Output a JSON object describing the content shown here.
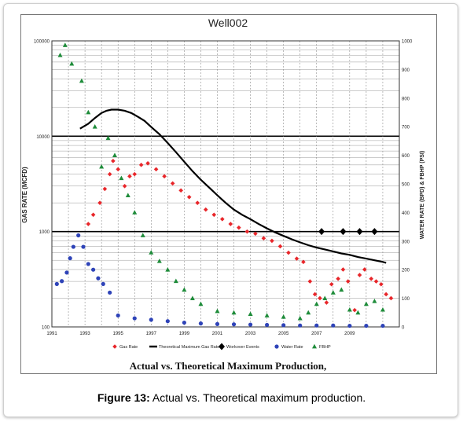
{
  "caption": {
    "label": "Figure 13:",
    "text": " Actual vs. Theoretical maximum production."
  },
  "chart_data": {
    "type": "scatter",
    "title": "Well002",
    "subtitle": "Actual vs. Theoretical Maximum Production,",
    "ylabel_left": "GAS RATE (MCFD)",
    "ylabel_right": "WATER RATE (BPD) & FBHP (PSI)",
    "y_left_scale": "log",
    "y_left_lim": [
      100,
      100000
    ],
    "y_left_ticks": [
      "100000",
      "10000",
      "1000",
      "100"
    ],
    "y_right_lim": [
      0,
      1000
    ],
    "y_right_ticks": [
      "1000",
      "900",
      "800",
      "700",
      "600",
      "500",
      "400",
      "300",
      "200",
      "100",
      "0"
    ],
    "xlim": [
      1991,
      2012
    ],
    "x_ticks": [
      "1991",
      "1993",
      "1995",
      "1997",
      "1999",
      "2001",
      "2003",
      "2005",
      "2007",
      "2009"
    ],
    "grid": true,
    "legend_position": "bottom",
    "series": [
      {
        "name": "Gas Rate",
        "axis": "left",
        "marker": "diamond",
        "color": "#e8262a",
        "x": [
          1993.2,
          1993.5,
          1993.9,
          1994.2,
          1994.5,
          1994.7,
          1995.0,
          1995.4,
          1995.7,
          1996.0,
          1996.4,
          1996.8,
          1997.3,
          1997.8,
          1998.3,
          1998.8,
          1999.3,
          1999.8,
          2000.3,
          2000.8,
          2001.3,
          2001.8,
          2002.3,
          2002.8,
          2003.3,
          2003.8,
          2004.3,
          2004.8,
          2005.3,
          2005.8,
          2006.2,
          2006.6,
          2006.9,
          2007.2,
          2007.6,
          2007.9,
          2008.3,
          2008.6,
          2008.9,
          2009.3,
          2009.6,
          2009.9,
          2010.3,
          2010.6,
          2010.9,
          2011.2,
          2011.5
        ],
        "y": [
          1200,
          1500,
          2000,
          2800,
          4000,
          5500,
          4500,
          3000,
          3800,
          4000,
          5000,
          5200,
          4500,
          3800,
          3200,
          2700,
          2300,
          2000,
          1700,
          1500,
          1350,
          1200,
          1100,
          1000,
          950,
          850,
          800,
          700,
          600,
          520,
          480,
          300,
          220,
          200,
          180,
          280,
          320,
          400,
          300,
          150,
          350,
          400,
          320,
          300,
          280,
          220,
          200
        ]
      },
      {
        "name": "Theoretical Maximum Gas Rate",
        "axis": "left",
        "marker": "line",
        "color": "#000000",
        "x": [
          1992.7,
          1993.2,
          1993.6,
          1994.0,
          1994.3,
          1994.6,
          1995.0,
          1995.4,
          1995.8,
          1996.2,
          1996.6,
          1997.0,
          1997.5,
          1998.0,
          1998.5,
          1999.0,
          1999.5,
          2000.0,
          2000.5,
          2001.0,
          2001.5,
          2002.0,
          2002.5,
          2003.0,
          2003.5,
          2004.0,
          2004.5,
          2005.0,
          2005.5,
          2006.0,
          2006.5,
          2007.0,
          2007.5,
          2008.0,
          2008.5,
          2009.0,
          2009.5,
          2010.0,
          2010.5,
          2011.0,
          2011.2
        ],
        "y": [
          12000,
          13500,
          15500,
          17500,
          18500,
          19000,
          19000,
          18500,
          17500,
          16000,
          14500,
          12500,
          10500,
          8500,
          6800,
          5400,
          4300,
          3500,
          2900,
          2400,
          2000,
          1700,
          1500,
          1350,
          1200,
          1080,
          980,
          900,
          830,
          770,
          720,
          680,
          650,
          620,
          590,
          570,
          540,
          520,
          500,
          480,
          470
        ]
      },
      {
        "name": "Workover Events",
        "axis": "left",
        "marker": "diamond-large",
        "color": "#000000",
        "x": [
          2007.3,
          2008.6,
          2009.6,
          2010.5
        ],
        "y": [
          1000,
          1000,
          1000,
          1000
        ]
      },
      {
        "name": "Water Rate",
        "axis": "right",
        "marker": "circle",
        "color": "#2e43b8",
        "x": [
          1991.3,
          1991.6,
          1991.9,
          1992.1,
          1992.3,
          1992.6,
          1992.9,
          1993.2,
          1993.5,
          1993.8,
          1994.1,
          1994.5,
          1995.0,
          1996.0,
          1997.0,
          1998.0,
          1999.0,
          2000.0,
          2001.0,
          2002.0,
          2003.0,
          2004.0,
          2005.0,
          2006.0,
          2007.0,
          2008.0,
          2009.0,
          2010.0,
          2011.0
        ],
        "y": [
          150,
          160,
          190,
          240,
          280,
          320,
          280,
          220,
          200,
          170,
          150,
          120,
          40,
          30,
          25,
          20,
          15,
          12,
          10,
          9,
          8,
          7,
          6,
          5,
          5,
          5,
          4,
          4,
          4
        ]
      },
      {
        "name": "FBHP",
        "axis": "right",
        "marker": "triangle",
        "color": "#1e8c3a",
        "x": [
          1991.5,
          1991.8,
          1992.2,
          1992.8,
          1993.2,
          1993.6,
          1994.0,
          1994.4,
          1994.8,
          1995.2,
          1995.6,
          1996.0,
          1996.5,
          1997.0,
          1997.5,
          1998.0,
          1998.5,
          1999.0,
          1999.5,
          2000.0,
          2001.0,
          2002.0,
          2003.0,
          2004.0,
          2005.0,
          2006.0,
          2006.5,
          2007.0,
          2007.5,
          2008.0,
          2008.5,
          2009.0,
          2009.5,
          2010.0,
          2010.5,
          2011.0
        ],
        "y": [
          950,
          985,
          920,
          860,
          750,
          700,
          560,
          660,
          600,
          520,
          460,
          400,
          320,
          260,
          230,
          200,
          160,
          130,
          100,
          80,
          55,
          50,
          45,
          40,
          35,
          30,
          50,
          80,
          100,
          120,
          130,
          60,
          50,
          80,
          90,
          60
        ]
      }
    ]
  }
}
